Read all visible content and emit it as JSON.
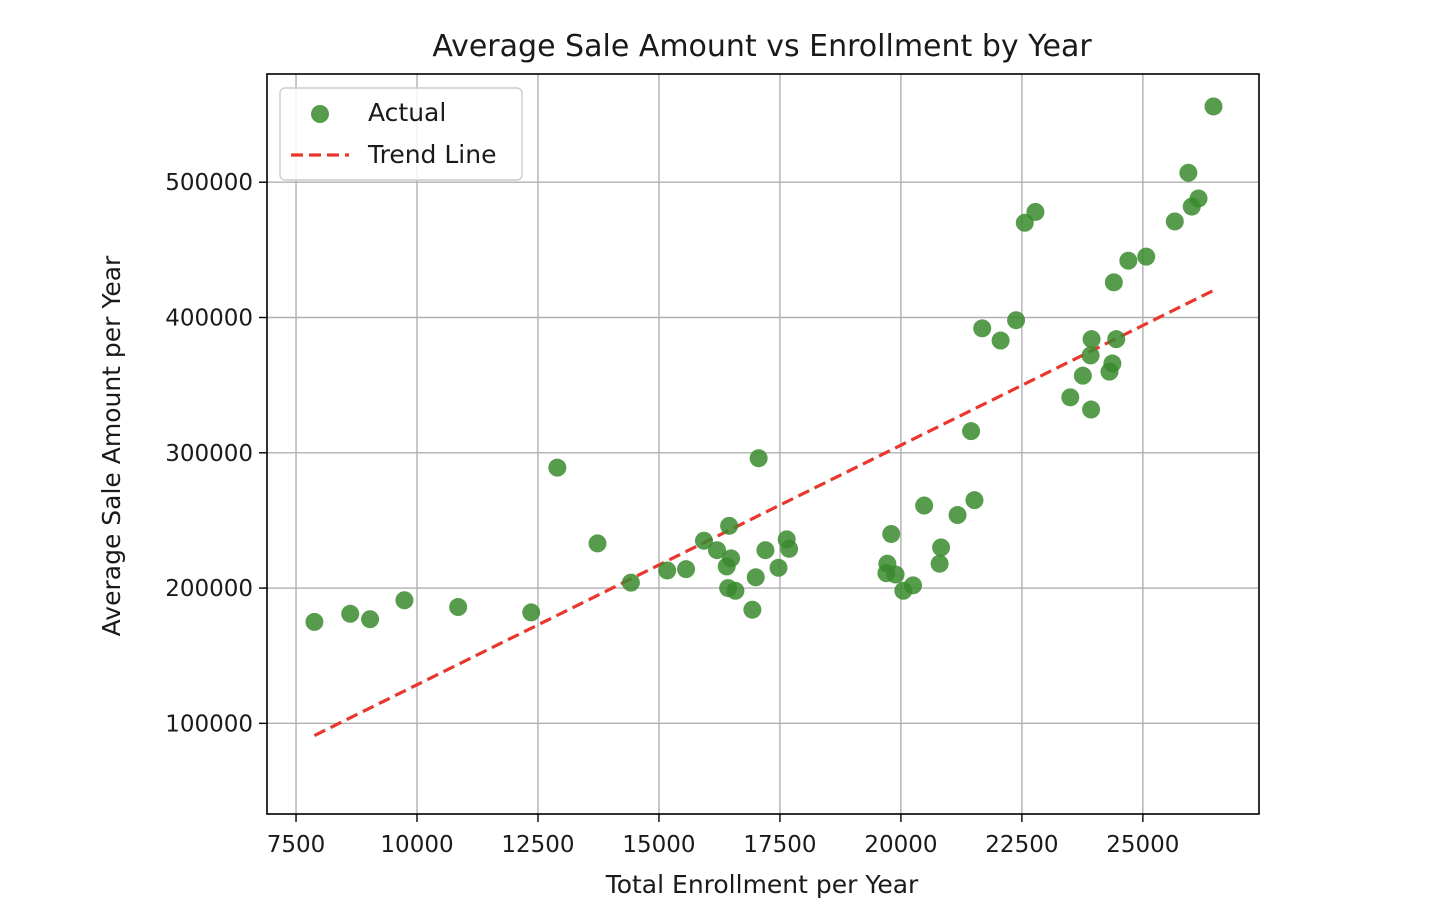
{
  "chart_data": {
    "type": "scatter",
    "title": "Average Sale Amount vs Enrollment by Year",
    "xlabel": "Total Enrollment per Year",
    "ylabel": "Average Sale Amount per Year",
    "xlim": [
      6900,
      27400
    ],
    "ylim": [
      33000,
      580000
    ],
    "xticks": [
      7500,
      10000,
      12500,
      15000,
      17500,
      20000,
      22500,
      25000
    ],
    "xtick_labels": [
      "7500",
      "10000",
      "12500",
      "15000",
      "17500",
      "20000",
      "22500",
      "25000"
    ],
    "yticks": [
      100000,
      200000,
      300000,
      400000,
      500000
    ],
    "ytick_labels": [
      "100000",
      "200000",
      "300000",
      "400000",
      "500000"
    ],
    "grid": true,
    "legend_position": "upper-left",
    "series": [
      {
        "name": "Actual",
        "kind": "scatter",
        "color": "#3a8a2e",
        "points": [
          [
            7880,
            175000
          ],
          [
            8620,
            181000
          ],
          [
            9030,
            177000
          ],
          [
            9740,
            191000
          ],
          [
            10850,
            186000
          ],
          [
            12360,
            182000
          ],
          [
            12900,
            289000
          ],
          [
            13730,
            233000
          ],
          [
            14420,
            204000
          ],
          [
            15170,
            213000
          ],
          [
            15560,
            214000
          ],
          [
            15930,
            235000
          ],
          [
            16200,
            228000
          ],
          [
            16450,
            246000
          ],
          [
            16490,
            222000
          ],
          [
            16400,
            216000
          ],
          [
            16430,
            200000
          ],
          [
            16580,
            198000
          ],
          [
            17000,
            208000
          ],
          [
            16930,
            184000
          ],
          [
            17060,
            296000
          ],
          [
            17200,
            228000
          ],
          [
            17470,
            215000
          ],
          [
            17640,
            236000
          ],
          [
            17690,
            229000
          ],
          [
            19800,
            240000
          ],
          [
            19720,
            218000
          ],
          [
            19700,
            211000
          ],
          [
            19890,
            210000
          ],
          [
            20050,
            198000
          ],
          [
            20250,
            202000
          ],
          [
            20480,
            261000
          ],
          [
            20800,
            218000
          ],
          [
            20830,
            230000
          ],
          [
            21170,
            254000
          ],
          [
            21450,
            316000
          ],
          [
            21520,
            265000
          ],
          [
            21680,
            392000
          ],
          [
            22060,
            383000
          ],
          [
            22380,
            398000
          ],
          [
            22560,
            470000
          ],
          [
            22780,
            478000
          ],
          [
            23500,
            341000
          ],
          [
            23760,
            357000
          ],
          [
            23920,
            372000
          ],
          [
            23940,
            384000
          ],
          [
            23930,
            332000
          ],
          [
            24310,
            360000
          ],
          [
            24370,
            366000
          ],
          [
            24400,
            426000
          ],
          [
            24450,
            384000
          ],
          [
            24700,
            442000
          ],
          [
            25070,
            445000
          ],
          [
            25660,
            471000
          ],
          [
            25940,
            507000
          ],
          [
            26010,
            482000
          ],
          [
            26150,
            488000
          ],
          [
            26460,
            556000
          ]
        ]
      },
      {
        "name": "Trend Line",
        "kind": "line",
        "style": "dashed",
        "color": "#e8372c",
        "points": [
          [
            7880,
            91000
          ],
          [
            26460,
            420000
          ]
        ]
      }
    ]
  }
}
